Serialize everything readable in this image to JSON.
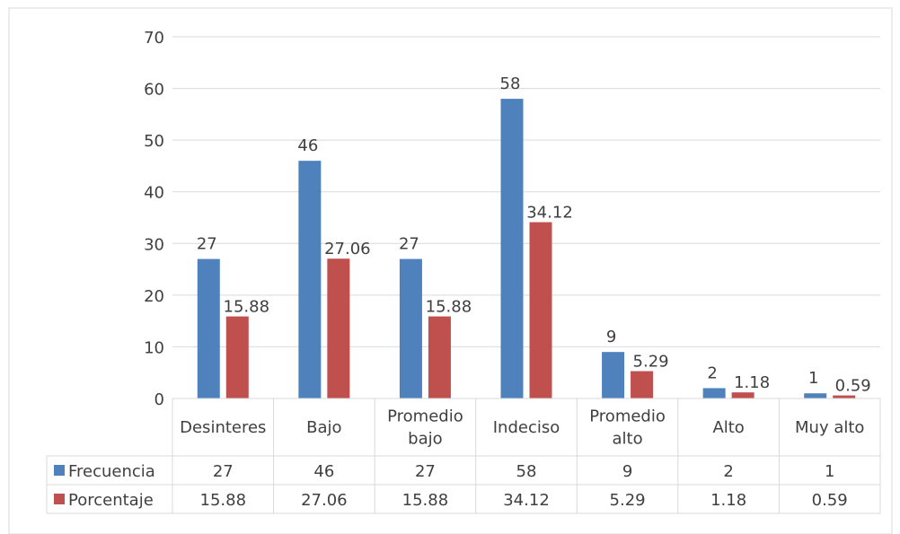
{
  "chart_data": {
    "type": "bar",
    "title": "",
    "xlabel": "",
    "ylabel": "",
    "ylim": [
      0,
      70
    ],
    "yticks": [
      0,
      10,
      20,
      30,
      40,
      50,
      60,
      70
    ],
    "grid": true,
    "categories": [
      [
        "Desinteres"
      ],
      [
        "Bajo"
      ],
      [
        "Promedio",
        "bajo"
      ],
      [
        "Indeciso"
      ],
      [
        "Promedio",
        "alto"
      ],
      [
        "Alto"
      ],
      [
        "Muy alto"
      ]
    ],
    "series": [
      {
        "name": "Frecuencia",
        "color": "#4f81bd",
        "values": [
          27,
          46,
          27,
          58,
          9,
          2,
          1
        ],
        "labels": [
          "27",
          "46",
          "27",
          "58",
          "9",
          "2",
          "1"
        ]
      },
      {
        "name": "Porcentaje",
        "color": "#c0504d",
        "values": [
          15.88,
          27.06,
          15.88,
          34.12,
          5.29,
          1.18,
          0.59
        ],
        "labels": [
          "15.88",
          "27.06",
          "15.88",
          "34.12",
          "5.29",
          "1.18",
          "0.59"
        ]
      }
    ],
    "legend": "data-table"
  }
}
